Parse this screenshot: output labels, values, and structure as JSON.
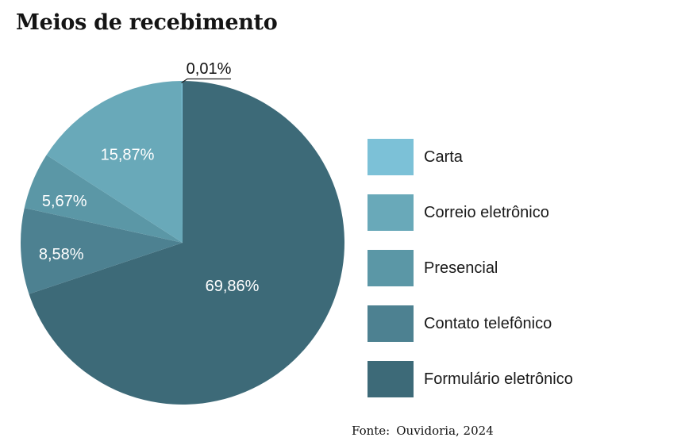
{
  "chart_data": {
    "type": "pie",
    "title": "Meios de recebimento",
    "unit": "%",
    "categories": [
      "Carta",
      "Correio eletrônico",
      "Presencial",
      "Contato telefônico",
      "Formulário eletrônico"
    ],
    "series": [
      {
        "name": "Carta",
        "value": 0.01,
        "display_label": "0,01%",
        "color": "#7cc1d7",
        "label_placement": "outside"
      },
      {
        "name": "Correio eletrônico",
        "value": 15.87,
        "display_label": "15,87%",
        "color": "#69a9b9",
        "label_placement": "inside"
      },
      {
        "name": "Presencial",
        "value": 5.67,
        "display_label": "5,67%",
        "color": "#5b97a6",
        "label_placement": "inside"
      },
      {
        "name": "Contato telefônico",
        "value": 8.58,
        "display_label": "8,58%",
        "color": "#4d8191",
        "label_placement": "inside"
      },
      {
        "name": "Formulário eletrônico",
        "value": 69.86,
        "display_label": "69,86%",
        "color": "#3d6a78",
        "label_placement": "inside"
      }
    ],
    "layout": {
      "start_angle_deg": 0,
      "direction": "clockwise",
      "clockwise_order": [
        "Formulário eletrônico",
        "Contato telefônico",
        "Presencial",
        "Correio eletrônico",
        "Carta"
      ],
      "legend_position": "right",
      "inside_label_color": "#ffffff",
      "background": "#ffffff",
      "grid": false
    }
  },
  "footer": {
    "prefix": "Fonte:",
    "text": "Ouvidoria, 2024"
  }
}
